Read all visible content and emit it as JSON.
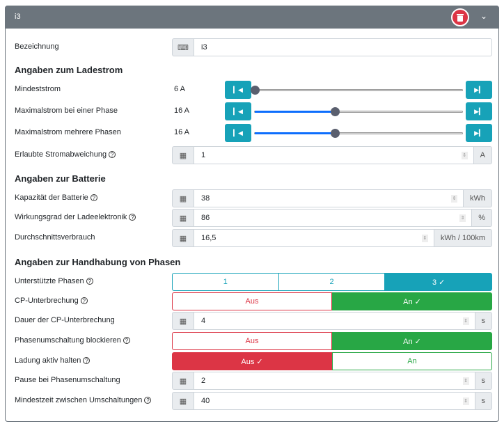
{
  "header": {
    "title": "i3",
    "delete_icon": "trash-icon",
    "collapse_icon": "chevron-down-icon"
  },
  "bezeichnung": {
    "label": "Bezeichnung",
    "value": "i3"
  },
  "sections": {
    "ladestrom": "Angaben zum Ladestrom",
    "batterie": "Angaben zur Batterie",
    "phasen": "Angaben zur Handhabung von Phasen"
  },
  "sliders": [
    {
      "label": "Mindeststrom",
      "value": "6 A",
      "num": 6
    },
    {
      "label": "Maximalstrom bei einer Phase",
      "value": "16 A",
      "num": 16
    },
    {
      "label": "Maximalstrom mehrere Phasen",
      "value": "16 A",
      "num": 16
    }
  ],
  "slider_range": [
    6,
    32
  ],
  "abweichung": {
    "label": "Erlaubte Stromabweichung",
    "value": "1",
    "unit": "A"
  },
  "kapazitaet": {
    "label": "Kapazität der Batterie",
    "value": "38",
    "unit": "kWh"
  },
  "wirkungsgrad": {
    "label": "Wirkungsgrad der Ladeelektronik",
    "value": "86",
    "unit": "%"
  },
  "verbrauch": {
    "label": "Durchschnittsverbrauch",
    "value": "16,5",
    "unit": "kWh / 100km"
  },
  "phasen": {
    "label": "Unterstützte Phasen",
    "options": [
      "1",
      "2",
      "3 ✓"
    ]
  },
  "cp": {
    "label": "CP-Unterbrechung",
    "off": "Aus",
    "on": "An ✓"
  },
  "cp_dauer": {
    "label": "Dauer der CP-Unterbrechung",
    "value": "4",
    "unit": "s"
  },
  "blockieren": {
    "label": "Phasenumschaltung blockieren",
    "off": "Aus",
    "on": "An ✓"
  },
  "aktiv": {
    "label": "Ladung aktiv halten",
    "off": "Aus ✓",
    "on": "An"
  },
  "pause": {
    "label": "Pause bei Phasenumschaltung",
    "value": "2",
    "unit": "s"
  },
  "mindestzeit": {
    "label": "Mindestzeit zwischen Umschaltungen",
    "value": "40",
    "unit": "s"
  },
  "colors": {
    "accent": "#17a2b8",
    "success": "#28a745",
    "danger": "#dc3545",
    "header": "#6c757d"
  }
}
